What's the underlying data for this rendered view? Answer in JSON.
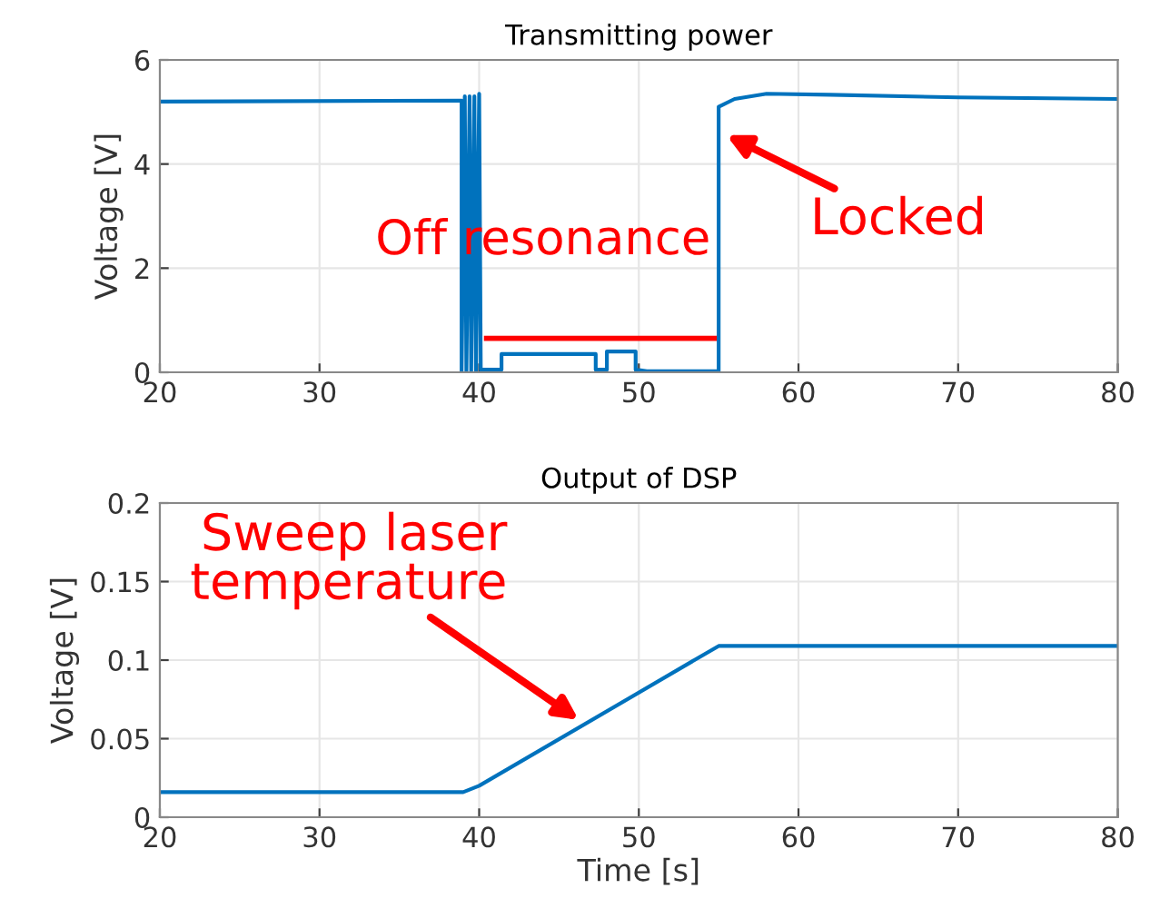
{
  "chart_data": [
    {
      "type": "line",
      "title": "Transmitting power",
      "ylabel": "Voltage [V]",
      "series": [
        {
          "color": "#0072bd",
          "x": [
            20,
            38.9,
            38.9,
            39.1,
            39.2,
            39.4,
            39.5,
            39.7,
            39.8,
            40,
            40.1,
            41.4,
            41.4,
            47.3,
            47.3,
            48,
            48,
            49.8,
            49.8,
            50.5,
            55,
            55,
            56,
            58,
            62,
            70,
            80
          ],
          "values": [
            5.2,
            5.22,
            0,
            5.3,
            0,
            5.3,
            0,
            5.3,
            0,
            5.35,
            0.05,
            0.05,
            0.35,
            0.35,
            0.05,
            0.05,
            0.4,
            0.4,
            0.05,
            0.02,
            0.02,
            5.1,
            5.25,
            5.35,
            5.33,
            5.28,
            5.25
          ]
        }
      ],
      "xlim": [
        20,
        80
      ],
      "xticks": [
        20,
        30,
        40,
        50,
        60,
        70,
        80
      ],
      "ylim": [
        0,
        6
      ],
      "yticks": [
        0,
        2,
        4,
        6
      ],
      "grid": true,
      "annotations": [
        "Off resonance",
        {
          "text": "Locked",
          "x": 55.2,
          "y": 4.6
        }
      ]
    },
    {
      "type": "line",
      "title": "Output of DSP",
      "ylabel": "Voltage [V]",
      "xlabel": "Time [s]",
      "series": [
        {
          "color": "#0072bd",
          "x": [
            20,
            39,
            40,
            55,
            80
          ],
          "values": [
            0.016,
            0.016,
            0.02,
            0.109,
            0.109
          ]
        }
      ],
      "xlim": [
        20,
        80
      ],
      "xticks": [
        20,
        30,
        40,
        50,
        60,
        70,
        80
      ],
      "ylim": [
        0,
        0.2
      ],
      "yticks": [
        0,
        0.05,
        0.1,
        0.15,
        0.2
      ],
      "grid": true,
      "annotations": [
        {
          "text": "Sweep laser\ntemperature",
          "x": 46.5,
          "y": 0.06
        }
      ]
    }
  ]
}
